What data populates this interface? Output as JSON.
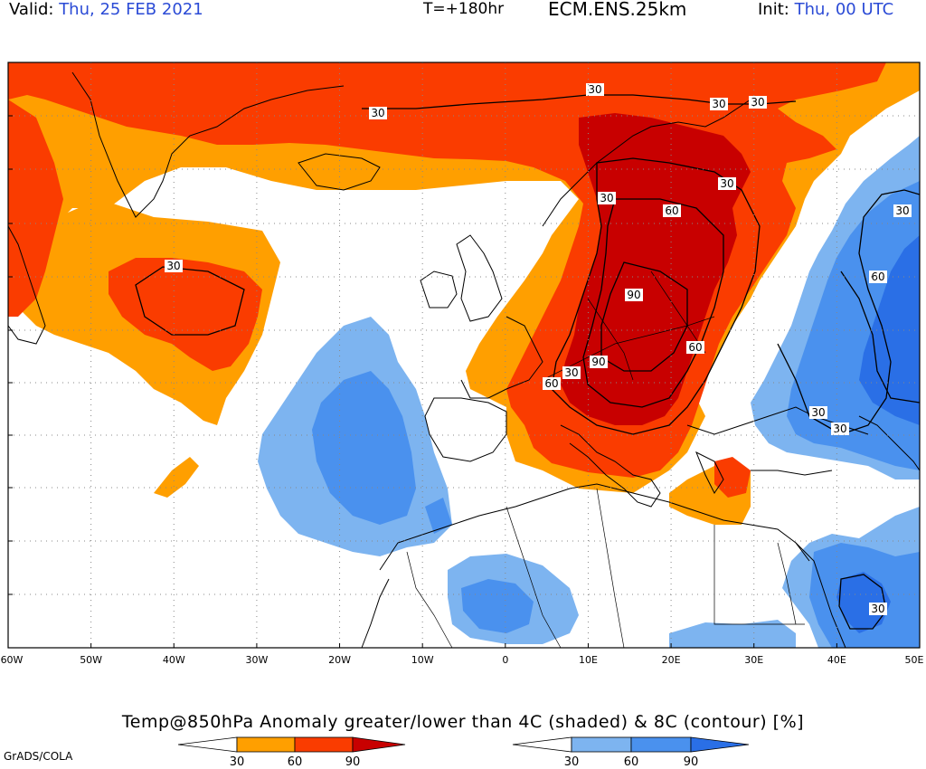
{
  "header": {
    "valid_label": "Valid:",
    "valid_date": "Thu, 25 FEB 2021",
    "lead_time": "T=+180hr",
    "model": "ECM.ENS.25km",
    "init_label": "Init:",
    "init_value": "Thu, 00 UTC"
  },
  "map": {
    "lon_ticks": [
      "60W",
      "50W",
      "40W",
      "30W",
      "20W",
      "10W",
      "0",
      "10E",
      "20E",
      "30E",
      "40E",
      "50E"
    ],
    "contour_labels": {
      "c1": "30",
      "c2": "30",
      "c3": "30",
      "c4": "30",
      "c5": "30",
      "c6": "60",
      "c7": "90",
      "c8": "60",
      "c9": "90",
      "c10": "30",
      "c11": "60",
      "c12": "30",
      "c13": "30",
      "c14": "30",
      "c15": "60",
      "c16": "30",
      "c17": "30",
      "c18": "30"
    }
  },
  "legend": {
    "title": "Temp@850hPa Anomaly greater/lower than 4C (shaded) & 8C (contour) [%]",
    "credit": "GrADS/COLA",
    "warm_ticks": [
      "30",
      "60",
      "90"
    ],
    "cold_ticks": [
      "30",
      "60",
      "90"
    ]
  },
  "colors": {
    "warm_30": "#ff9f00",
    "warm_60": "#fa3c00",
    "warm_90": "#c80000",
    "cold_30": "#7db4f0",
    "cold_60": "#4a91ee",
    "cold_90": "#2a6fe6"
  }
}
